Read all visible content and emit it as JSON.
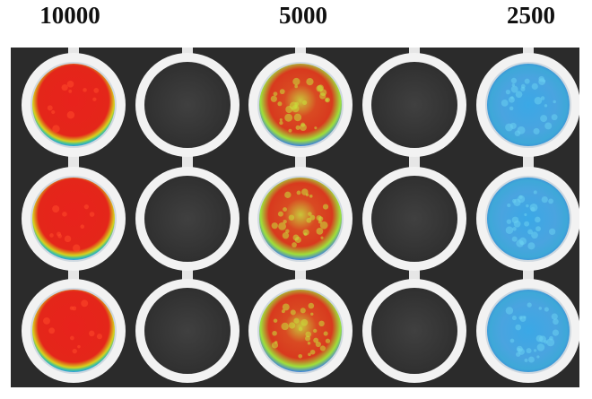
{
  "column_labels": [
    "10000",
    "5000",
    "2500"
  ],
  "plate": {
    "rows": 3,
    "columns": 5,
    "wells": [
      [
        "high",
        "empty",
        "medium",
        "empty",
        "low"
      ],
      [
        "high",
        "empty",
        "medium",
        "empty",
        "low"
      ],
      [
        "high",
        "empty",
        "medium",
        "empty",
        "low"
      ]
    ]
  },
  "colors": {
    "background": "#2b2b2b",
    "well_ring": "#f2f2f2",
    "empty_well": "#3a3a3a",
    "high_signal": "#e8221c",
    "medium_signal": "#9fe03a",
    "low_signal": "#3aa8e6",
    "edge_glow": "#2f9be0"
  }
}
